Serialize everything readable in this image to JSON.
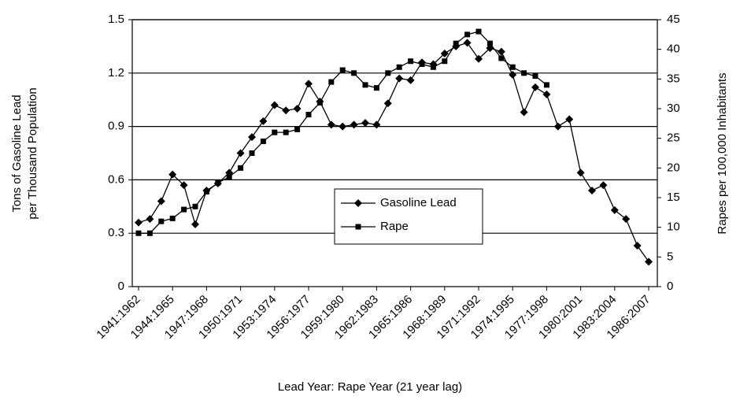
{
  "chart_data": {
    "type": "line",
    "xlabel": "Lead Year: Rape Year (21 year lag)",
    "ylabel": [
      "Tons of Gasoline Lead",
      "per Thousand Population"
    ],
    "y2label": "Rapes per 100,000 Inhabitants",
    "categories": [
      "1941:1962",
      null,
      null,
      "1944:1965",
      null,
      null,
      "1947:1968",
      null,
      null,
      "1950:1971",
      null,
      null,
      "1953:1974",
      null,
      null,
      "1956:1977",
      null,
      null,
      "1959:1980",
      null,
      null,
      "1962:1983",
      null,
      null,
      "1965:1986",
      null,
      null,
      "1968:1989",
      null,
      null,
      "1971:1992",
      null,
      null,
      "1974:1995",
      null,
      null,
      "1977:1998",
      null,
      null,
      "1980:2001",
      null,
      null,
      "1983:2004",
      null,
      null,
      "1986:2007"
    ],
    "series": [
      {
        "name": "Gasoline Lead",
        "color": "#000000",
        "marker": "diamond",
        "values": [
          0.36,
          0.38,
          0.48,
          0.63,
          0.57,
          0.35,
          0.54,
          0.58,
          0.64,
          0.75,
          0.84,
          0.93,
          1.02,
          0.99,
          1.0,
          1.14,
          1.04,
          0.91,
          0.9,
          0.91,
          0.92,
          0.91,
          1.03,
          1.17,
          1.16,
          1.26,
          1.25,
          1.31,
          1.35,
          1.37,
          1.28,
          1.34,
          1.32,
          1.19,
          0.98,
          1.12,
          1.08,
          0.9,
          0.94,
          0.64,
          0.54,
          0.57,
          0.43,
          0.38,
          0.23,
          0.14
        ]
      },
      {
        "name": "Rape",
        "color": "#000000",
        "marker": "square",
        "axis": "y2",
        "values": [
          9,
          9,
          11,
          11.5,
          13,
          13.5,
          16,
          17.5,
          18.5,
          20,
          22.5,
          24.5,
          26,
          26,
          26.5,
          29,
          31,
          34.5,
          36.5,
          36,
          34,
          33.5,
          36,
          37,
          38,
          37.5,
          37,
          38,
          41,
          42.5,
          43,
          41,
          38.5,
          37,
          36,
          35.5,
          34,
          null,
          null,
          null,
          null,
          null,
          null,
          null,
          null,
          null
        ]
      }
    ],
    "ylim": [
      0,
      1.5
    ],
    "yticks": [
      0,
      0.3,
      0.6,
      0.9,
      1.2,
      1.5
    ],
    "y2lim": [
      0,
      45
    ],
    "y2ticks": [
      0,
      5,
      10,
      15,
      20,
      25,
      30,
      35,
      40,
      45
    ],
    "grid": true,
    "legend": "center"
  }
}
